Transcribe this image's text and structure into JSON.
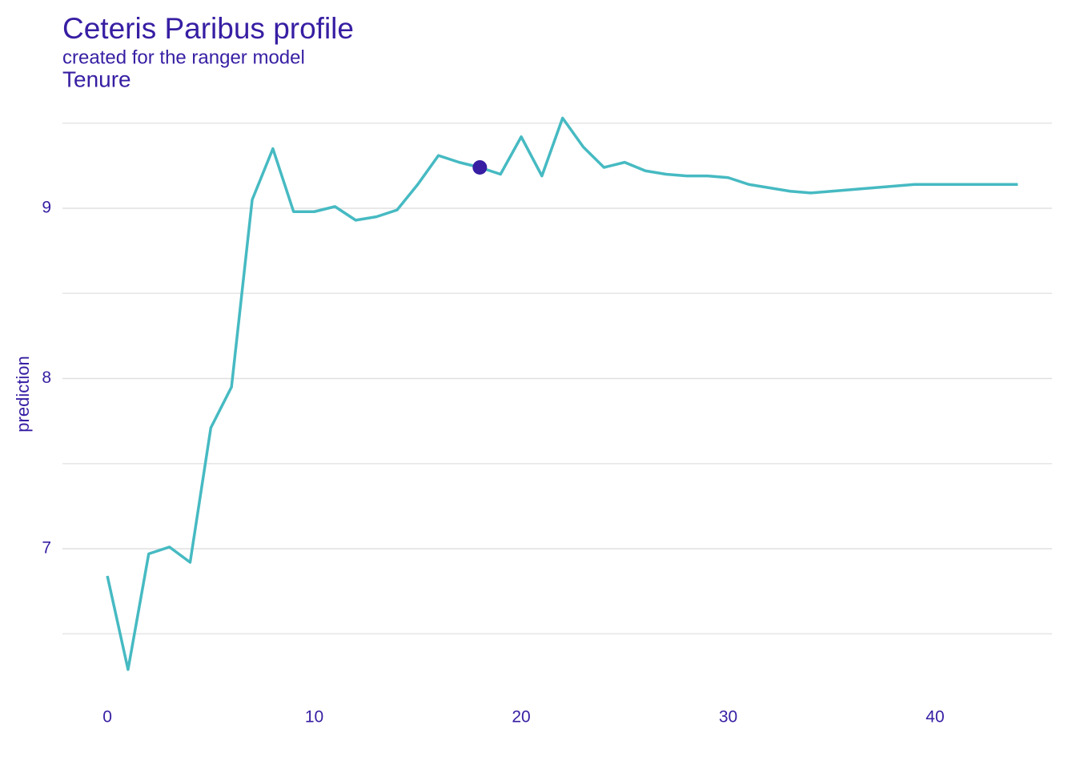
{
  "chart_data": {
    "type": "line",
    "title": "Ceteris Paribus profile",
    "subtitle": "created for the ranger model",
    "panel_title": "Tenure",
    "ylabel": "prediction",
    "x": [
      0,
      1,
      2,
      3,
      4,
      5,
      6,
      7,
      8,
      9,
      10,
      11,
      12,
      13,
      14,
      15,
      16,
      17,
      18,
      19,
      20,
      21,
      22,
      23,
      24,
      25,
      26,
      27,
      28,
      29,
      30,
      31,
      32,
      33,
      34,
      35,
      36,
      37,
      38,
      39,
      40,
      41,
      42,
      43,
      44
    ],
    "values": [
      6.84,
      6.29,
      6.97,
      7.01,
      6.92,
      7.71,
      7.95,
      9.05,
      9.35,
      8.98,
      8.98,
      9.01,
      8.93,
      8.95,
      8.99,
      9.14,
      9.31,
      9.27,
      9.24,
      9.2,
      9.42,
      9.19,
      9.53,
      9.36,
      9.24,
      9.27,
      9.22,
      9.2,
      9.19,
      9.19,
      9.18,
      9.14,
      9.12,
      9.1,
      9.09,
      9.1,
      9.11,
      9.12,
      9.13,
      9.14,
      9.14,
      9.14,
      9.14,
      9.14,
      9.14
    ],
    "color": "#46bac2",
    "point": {
      "x": 18,
      "y": 9.24,
      "color": "#371ea3"
    },
    "xlim": [
      -2.17,
      45.65
    ],
    "ylim": [
      6.15,
      9.6
    ],
    "xticks": [
      0,
      10,
      20,
      30,
      40
    ],
    "yticks": [
      7,
      8,
      9
    ],
    "minor_yticks": [
      6.5,
      7.5,
      8.5,
      9.5
    ],
    "grid": true
  }
}
